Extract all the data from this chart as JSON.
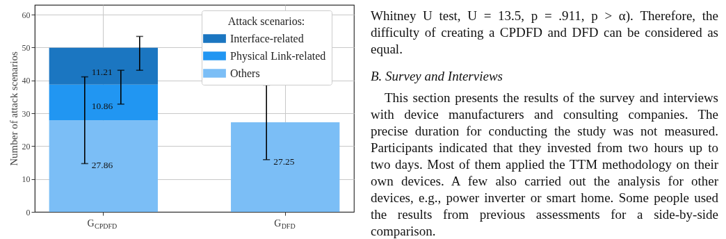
{
  "chart_data": {
    "type": "bar",
    "stacked": true,
    "ylabel": "Number of attack scenarios",
    "legend_title": "Attack scenarios:",
    "legend": "top right",
    "grid": true,
    "categories": [
      "G$_{CPDFD}$",
      "G$_{DFD}$"
    ],
    "ylim": [
      0,
      63
    ],
    "yticks": [
      0,
      10,
      20,
      30,
      40,
      50,
      60
    ],
    "series": [
      {
        "name": "Others",
        "color": "#7bbef6",
        "values": [
          27.86,
          27.25
        ],
        "errors": [
          [
            14.7,
            41.1
          ],
          [
            15.9,
            38.6
          ]
        ],
        "value_labels": [
          "27.86",
          "27.25"
        ]
      },
      {
        "name": "Physical Link-related",
        "color": "#2196f2",
        "values": [
          10.86,
          null
        ],
        "errors": [
          [
            32.8,
            43.1
          ],
          null
        ],
        "value_labels": [
          "10.86",
          null
        ]
      },
      {
        "name": "Interface-related",
        "color": "#1b76c1",
        "values": [
          11.21,
          null
        ],
        "errors": [
          [
            43.1,
            53.4
          ],
          null
        ],
        "value_labels": [
          "11.21",
          null
        ]
      }
    ],
    "annotations": [
      "Whitney U test, U = 13.5, p = .911, p > α). Therefore, the difficulty of creating a CPDFD and DFD can be considered as equal.",
      "B. Survey and Interviews",
      "This section presents the results of the survey and interviews with device manufacturers and consulting companies. The precise duration for conducting the study was not measured. Participants indicated that they invested from two hours up to two days. Most of them applied the TTM methodology on their own devices. A few also carried out the analysis for other devices, e.g., power inverter or smart home. Some people used the results from previous assessments for a side-by-side comparison."
    ]
  }
}
